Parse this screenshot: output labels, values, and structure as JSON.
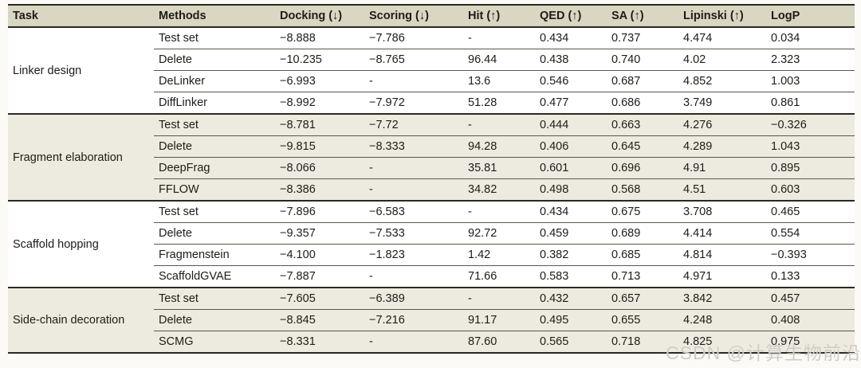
{
  "table": {
    "columns": [
      {
        "key": "task",
        "label": "Task"
      },
      {
        "key": "method",
        "label": "Methods"
      },
      {
        "key": "docking",
        "label": "Docking (↓)"
      },
      {
        "key": "scoring",
        "label": "Scoring (↓)"
      },
      {
        "key": "hit",
        "label": "Hit (↑)"
      },
      {
        "key": "qed",
        "label": "QED (↑)"
      },
      {
        "key": "sa",
        "label": "SA (↑)"
      },
      {
        "key": "lipinski",
        "label": "Lipinski (↑)"
      },
      {
        "key": "logp",
        "label": "LogP"
      }
    ],
    "groups": [
      {
        "task": "Linker design",
        "shaded": false,
        "rows": [
          {
            "method": "Test set",
            "docking": "−8.888",
            "scoring": "−7.786",
            "hit": "-",
            "qed": "0.434",
            "sa": "0.737",
            "lipinski": "4.474",
            "logp": "0.034"
          },
          {
            "method": "Delete",
            "docking": "−10.235",
            "scoring": "−8.765",
            "hit": "96.44",
            "qed": "0.438",
            "sa": "0.740",
            "lipinski": "4.02",
            "logp": "2.323"
          },
          {
            "method": "DeLinker",
            "docking": "−6.993",
            "scoring": "-",
            "hit": "13.6",
            "qed": "0.546",
            "sa": "0.687",
            "lipinski": "4.852",
            "logp": "1.003"
          },
          {
            "method": "DiffLinker",
            "docking": "−8.992",
            "scoring": "−7.972",
            "hit": "51.28",
            "qed": "0.477",
            "sa": "0.686",
            "lipinski": "3.749",
            "logp": "0.861"
          }
        ]
      },
      {
        "task": "Fragment elaboration",
        "shaded": true,
        "rows": [
          {
            "method": "Test set",
            "docking": "−8.781",
            "scoring": "−7.72",
            "hit": "-",
            "qed": "0.444",
            "sa": "0.663",
            "lipinski": "4.276",
            "logp": "−0.326"
          },
          {
            "method": "Delete",
            "docking": "−9.815",
            "scoring": "−8.333",
            "hit": "94.28",
            "qed": "0.406",
            "sa": "0.645",
            "lipinski": "4.289",
            "logp": "1.043"
          },
          {
            "method": "DeepFrag",
            "docking": "−8.066",
            "scoring": "-",
            "hit": "35.81",
            "qed": "0.601",
            "sa": "0.696",
            "lipinski": "4.91",
            "logp": "0.895"
          },
          {
            "method": "FFLOW",
            "docking": "−8.386",
            "scoring": "-",
            "hit": "34.82",
            "qed": "0.498",
            "sa": "0.568",
            "lipinski": "4.51",
            "logp": "0.603"
          }
        ]
      },
      {
        "task": "Scaffold hopping",
        "shaded": false,
        "rows": [
          {
            "method": "Test set",
            "docking": "−7.896",
            "scoring": "−6.583",
            "hit": "-",
            "qed": "0.434",
            "sa": "0.675",
            "lipinski": "3.708",
            "logp": "0.465"
          },
          {
            "method": "Delete",
            "docking": "−9.357",
            "scoring": "−7.533",
            "hit": "92.72",
            "qed": "0.459",
            "sa": "0.689",
            "lipinski": "4.414",
            "logp": "0.554"
          },
          {
            "method": "Fragmenstein",
            "docking": "−4.100",
            "scoring": "−1.823",
            "hit": "1.42",
            "qed": "0.382",
            "sa": "0.685",
            "lipinski": "4.814",
            "logp": "−0.393"
          },
          {
            "method": "ScaffoldGVAE",
            "docking": "−7.887",
            "scoring": "-",
            "hit": "71.66",
            "qed": "0.583",
            "sa": "0.713",
            "lipinski": "4.971",
            "logp": "0.133"
          }
        ]
      },
      {
        "task": "Side-chain decoration",
        "shaded": true,
        "rows": [
          {
            "method": "Test set",
            "docking": "−7.605",
            "scoring": "−6.389",
            "hit": "-",
            "qed": "0.432",
            "sa": "0.657",
            "lipinski": "3.842",
            "logp": "0.457"
          },
          {
            "method": "Delete",
            "docking": "−8.845",
            "scoring": "−7.216",
            "hit": "91.17",
            "qed": "0.495",
            "sa": "0.655",
            "lipinski": "4.248",
            "logp": "0.408"
          },
          {
            "method": "SCMG",
            "docking": "−8.331",
            "scoring": "-",
            "hit": "87.60",
            "qed": "0.565",
            "sa": "0.718",
            "lipinski": "4.825",
            "logp": "0.975"
          }
        ]
      }
    ]
  },
  "watermark": {
    "text": "CSDN @计算生物前沿"
  },
  "colors": {
    "header_bg": "#d9d6c1",
    "shaded_row_bg": "#edebdf",
    "rule_dark": "#2a2922",
    "rule_light": "#58564e",
    "watermark": "#cdc9c0"
  }
}
